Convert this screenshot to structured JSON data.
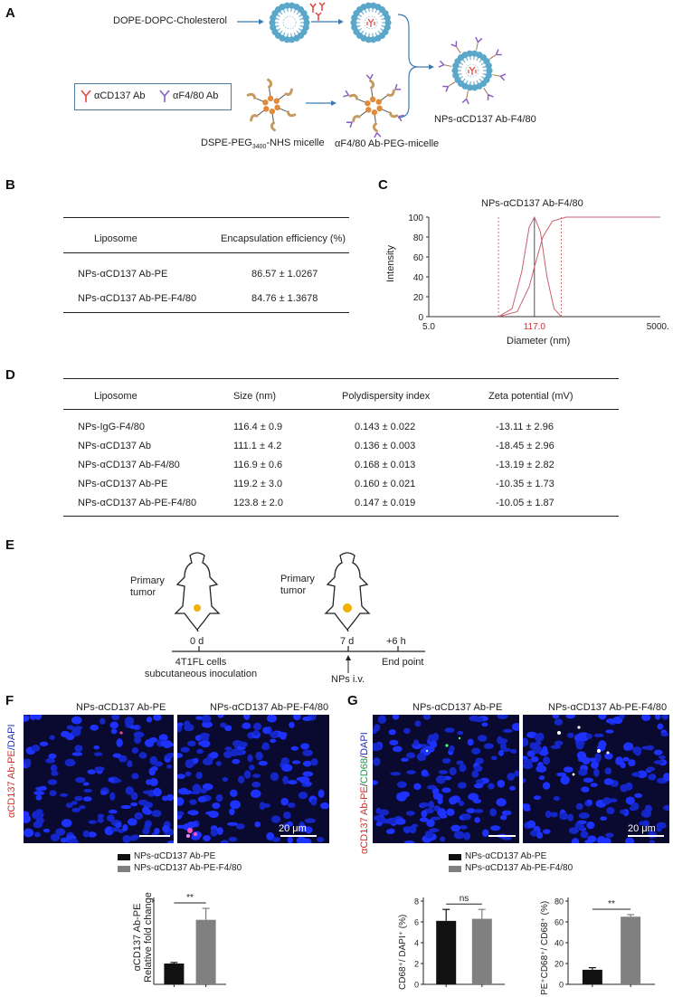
{
  "panel_a": {
    "letter": "A",
    "lipid_label": "DOPE-DOPC-Cholesterol",
    "legend_ab1": "αCD137 Ab",
    "legend_ab2": "αF4/80 Ab",
    "micelle_label_pre": "DSPE-PEG",
    "micelle_label_sub": "3400",
    "micelle_label_post": "-NHS micelle",
    "peg_micelle_label": "αF4/80 Ab-PEG-micelle",
    "product_label": "NPs-αCD137 Ab-F4/80",
    "colors": {
      "lipid": "#5aa7c9",
      "micelle_core": "#e08a3a",
      "ab_red": "#e0463e",
      "ab_purple": "#8a5cc4",
      "arrow": "#3a7ab0"
    }
  },
  "panel_b": {
    "letter": "B",
    "headers": [
      "Liposome",
      "Encapsulation efficiency (%)"
    ],
    "rows": [
      [
        "NPs-αCD137 Ab-PE",
        "86.57 ± 1.0267"
      ],
      [
        "NPs-αCD137 Ab-PE-F4/80",
        "84.76 ± 1.3678"
      ]
    ]
  },
  "panel_c": {
    "letter": "C",
    "chart_data": {
      "type": "line",
      "title": "NPs-αCD137 Ab-F4/80",
      "xlabel": "Diameter (nm)",
      "ylabel": "Intensity",
      "x_scale": "log",
      "x_tick_labels": [
        "5.0",
        "117.0",
        "5000.0"
      ],
      "y_ticks": [
        0,
        20,
        40,
        60,
        80,
        100
      ],
      "ylim": [
        0,
        100
      ],
      "series": [
        {
          "values_desc": "",
          "x": [
            40,
            60,
            80,
            100,
            117,
            140,
            170,
            210,
            260
          ],
          "y": [
            0,
            8,
            45,
            90,
            100,
            85,
            40,
            8,
            0
          ]
        },
        {
          "values_desc": "",
          "x": [
            40,
            70,
            100,
            117,
            150,
            200,
            300,
            500,
            5000
          ],
          "y": [
            0,
            5,
            30,
            50,
            80,
            96,
            100,
            100,
            100
          ]
        }
      ],
      "peak_label": "117.0"
    }
  },
  "panel_d": {
    "letter": "D",
    "headers": [
      "Liposome",
      "Size (nm)",
      "Polydispersity index",
      "Zeta potential (mV)"
    ],
    "rows": [
      [
        "NPs-IgG-F4/80",
        "116.4 ± 0.9",
        "0.143 ± 0.022",
        "-13.11 ± 2.96"
      ],
      [
        "NPs-αCD137 Ab",
        "111.1 ± 4.2",
        "0.136 ± 0.003",
        "-18.45 ± 2.96"
      ],
      [
        "NPs-αCD137 Ab-F4/80",
        "116.9 ± 0.6",
        "0.168 ± 0.013",
        "-13.19 ± 2.82"
      ],
      [
        "NPs-αCD137 Ab-PE",
        "119.2 ± 3.0",
        "0.160 ± 0.021",
        "-10.35 ± 1.73"
      ],
      [
        "NPs-αCD137 Ab-PE-F4/80",
        "123.8 ± 2.0",
        "0.147 ± 0.019",
        "-10.05 ± 1.87"
      ]
    ]
  },
  "panel_e": {
    "letter": "E",
    "tumor_label_line1": "Primary",
    "tumor_label_line2": "tumor",
    "t0": "0 d",
    "t1": "7 d",
    "t2": "+6 h",
    "event0_line1": "4T1FL cells",
    "event0_line2": "subcutaneous inoculation",
    "event1": "NPs i.v.",
    "event2": "End point"
  },
  "panel_f": {
    "letter": "F",
    "img1_title": "NPs-αCD137 Ab-PE",
    "img2_title": "NPs-αCD137 Ab-PE-F4/80",
    "side_label_red": "αCD137 Ab-PE",
    "side_label_blue": "/DAPI",
    "scale_label": "20 μm",
    "legend": [
      "NPs-αCD137 Ab-PE",
      "NPs-αCD137 Ab-PE-F4/80"
    ],
    "chart_data": {
      "type": "bar",
      "categories": [
        "NPs-αCD137 Ab-PE",
        "NPs-αCD137 Ab-PE-F4/80"
      ],
      "values": [
        1.0,
        3.1
      ],
      "errors": [
        0.05,
        0.55
      ],
      "ylabel_line1": "αCD137 Ab-PE",
      "ylabel_line2": "Relative fold change",
      "significance": "**",
      "colors": [
        "#111111",
        "#808080"
      ]
    }
  },
  "panel_g": {
    "letter": "G",
    "img1_title": "NPs-αCD137 Ab-PE",
    "img2_title": "NPs-αCD137 Ab-PE-F4/80",
    "side_label_red": "αCD137 Ab-PE",
    "side_label_green": "CD68",
    "side_label_blue": "DAPI",
    "scale_label": "20 μm",
    "legend": [
      "NPs-αCD137 Ab-PE",
      "NPs-αCD137 Ab-PE-F4/80"
    ],
    "chart_data": [
      {
        "type": "bar",
        "categories": [
          "NPs-αCD137 Ab-PE",
          "NPs-αCD137 Ab-PE-F4/80"
        ],
        "values": [
          6.1,
          6.3
        ],
        "errors": [
          1.1,
          0.9
        ],
        "ylim": [
          0,
          8
        ],
        "y_ticks": [
          0,
          2,
          4,
          6,
          8
        ],
        "ylabel": "CD68⁺/ DAPI⁺ (%)",
        "significance": "ns"
      },
      {
        "type": "bar",
        "categories": [
          "NPs-αCD137 Ab-PE",
          "NPs-αCD137 Ab-PE-F4/80"
        ],
        "values": [
          14,
          65
        ],
        "errors": [
          2,
          2
        ],
        "ylim": [
          0,
          80
        ],
        "y_ticks": [
          0,
          20,
          40,
          60,
          80
        ],
        "ylabel": "PE⁺CD68⁺/ CD68⁺ (%)",
        "significance": "**"
      }
    ]
  }
}
